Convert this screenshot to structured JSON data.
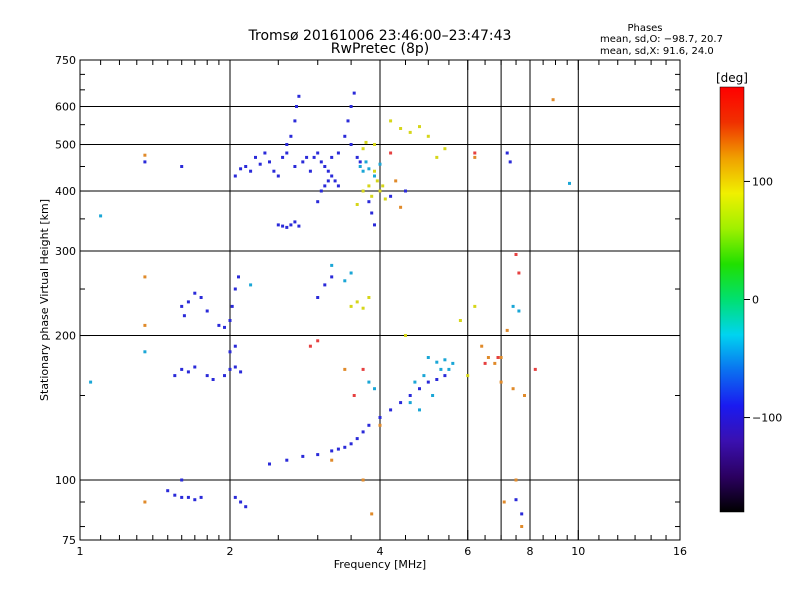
{
  "chart_data": {
    "type": "scatter",
    "title": "Tromsø 20161006 23:46:00–23:47:43",
    "subtitle": "RwPretec (8p)",
    "xlabel": "Frequency [MHz]",
    "ylabel": "Stationary phase Virtual Height [km]",
    "x_scale": "log",
    "y_scale": "log",
    "xlim": [
      1,
      16
    ],
    "ylim": [
      75,
      750
    ],
    "x_ticks": [
      1,
      2,
      4,
      6,
      8,
      10,
      16
    ],
    "x_tick_labels": [
      "1",
      "2",
      "4",
      "6",
      "8",
      "10",
      "16"
    ],
    "x_minor_ticks": [
      1.1,
      1.2,
      1.3,
      1.4,
      1.5,
      1.6,
      1.7,
      1.8,
      1.9,
      2.5,
      3,
      3.5,
      4.5,
      5,
      5.5,
      6.5,
      7,
      7.5,
      8.5,
      9,
      9.5,
      11,
      12,
      13,
      14,
      15
    ],
    "y_ticks": [
      75,
      100,
      200,
      300,
      400,
      500,
      600,
      750
    ],
    "y_tick_labels": [
      "75",
      "100",
      "200",
      "300",
      "400",
      "500",
      "600",
      "750"
    ],
    "y_minor_ticks": [
      80,
      90,
      150,
      250,
      350,
      450,
      550,
      650,
      700
    ],
    "grid_x": [
      2,
      4,
      6,
      7,
      8,
      10
    ],
    "grid_y": [
      100,
      200,
      300,
      400,
      500,
      600
    ],
    "stats_header": "Phases",
    "stats_lines": [
      "mean, sd,O: −98.7, 20.7",
      "mean, sd,X:  91.6, 24.0"
    ],
    "colorbar": {
      "label": "[deg]",
      "range": [
        -180,
        180
      ],
      "ticks": [
        100,
        0,
        -100
      ],
      "tick_labels": [
        "100",
        "0",
        "−100"
      ]
    },
    "series": [
      {
        "values": [
          [
            2.05,
            430
          ],
          [
            2.1,
            445
          ],
          [
            2.15,
            450
          ],
          [
            2.2,
            440
          ],
          [
            2.25,
            470
          ],
          [
            2.3,
            455
          ],
          [
            2.35,
            480
          ],
          [
            2.4,
            460
          ],
          [
            2.45,
            440
          ],
          [
            2.5,
            430
          ],
          [
            2.55,
            470
          ],
          [
            2.6,
            500
          ],
          [
            2.65,
            520
          ],
          [
            2.7,
            560
          ],
          [
            2.72,
            600
          ],
          [
            2.75,
            630
          ],
          [
            2.6,
            480
          ],
          [
            2.7,
            450
          ],
          [
            2.8,
            460
          ],
          [
            2.85,
            470
          ],
          [
            2.9,
            440
          ],
          [
            2.95,
            470
          ],
          [
            3.0,
            480
          ],
          [
            3.05,
            460
          ],
          [
            3.1,
            450
          ],
          [
            3.15,
            440
          ],
          [
            3.2,
            470
          ],
          [
            3.3,
            480
          ],
          [
            3.4,
            520
          ],
          [
            3.45,
            560
          ],
          [
            3.5,
            600
          ],
          [
            3.55,
            640
          ],
          [
            3.5,
            500
          ],
          [
            3.6,
            470
          ],
          [
            3.65,
            460
          ],
          [
            2.5,
            340
          ],
          [
            2.55,
            338
          ],
          [
            2.6,
            336
          ],
          [
            2.65,
            340
          ],
          [
            2.7,
            345
          ],
          [
            2.75,
            338
          ],
          [
            3.0,
            380
          ],
          [
            3.05,
            400
          ],
          [
            3.1,
            410
          ],
          [
            3.15,
            420
          ],
          [
            3.2,
            430
          ],
          [
            3.25,
            420
          ],
          [
            3.3,
            410
          ],
          [
            3.8,
            380
          ],
          [
            3.85,
            360
          ],
          [
            3.9,
            340
          ],
          [
            1.6,
            230
          ],
          [
            1.62,
            220
          ],
          [
            1.65,
            235
          ],
          [
            1.7,
            245
          ],
          [
            1.75,
            240
          ],
          [
            1.8,
            225
          ],
          [
            1.9,
            210
          ],
          [
            1.95,
            208
          ],
          [
            2.0,
            215
          ],
          [
            2.02,
            230
          ],
          [
            2.05,
            250
          ],
          [
            2.08,
            265
          ],
          [
            3.0,
            240
          ],
          [
            3.1,
            255
          ],
          [
            3.2,
            265
          ],
          [
            1.55,
            165
          ],
          [
            1.6,
            170
          ],
          [
            1.65,
            168
          ],
          [
            1.7,
            172
          ],
          [
            1.8,
            165
          ],
          [
            1.85,
            162
          ],
          [
            1.95,
            165
          ],
          [
            2.0,
            170
          ],
          [
            2.05,
            172
          ],
          [
            2.1,
            168
          ],
          [
            2.0,
            185
          ],
          [
            2.05,
            190
          ],
          [
            2.4,
            108
          ],
          [
            2.6,
            110
          ],
          [
            2.8,
            112
          ],
          [
            3.0,
            113
          ],
          [
            3.2,
            115
          ],
          [
            3.3,
            116
          ],
          [
            3.4,
            117
          ],
          [
            3.5,
            119
          ],
          [
            3.6,
            122
          ],
          [
            3.7,
            126
          ],
          [
            3.8,
            130
          ],
          [
            4.0,
            135
          ],
          [
            4.2,
            140
          ],
          [
            4.4,
            145
          ],
          [
            4.6,
            150
          ],
          [
            4.8,
            155
          ],
          [
            5.0,
            160
          ],
          [
            5.2,
            162
          ],
          [
            5.4,
            165
          ],
          [
            1.5,
            95
          ],
          [
            1.55,
            93
          ],
          [
            1.6,
            92
          ],
          [
            1.65,
            92
          ],
          [
            1.7,
            91
          ],
          [
            1.75,
            92
          ],
          [
            1.6,
            100
          ],
          [
            2.05,
            92
          ],
          [
            2.1,
            90
          ],
          [
            2.15,
            88
          ],
          [
            1.35,
            460
          ],
          [
            1.6,
            450
          ],
          [
            4.2,
            390
          ],
          [
            4.5,
            400
          ],
          [
            7.2,
            480
          ],
          [
            7.3,
            460
          ],
          [
            7.5,
            91
          ],
          [
            7.7,
            85
          ]
        ]
      },
      {
        "values": [
          [
            3.65,
            450
          ],
          [
            3.7,
            440
          ],
          [
            3.75,
            460
          ],
          [
            3.8,
            445
          ],
          [
            3.9,
            430
          ],
          [
            4.0,
            455
          ],
          [
            5.0,
            180
          ],
          [
            5.2,
            176
          ],
          [
            5.4,
            178
          ],
          [
            5.6,
            175
          ],
          [
            5.3,
            170
          ],
          [
            4.7,
            160
          ],
          [
            4.9,
            165
          ],
          [
            5.1,
            150
          ],
          [
            5.5,
            170
          ],
          [
            1.1,
            355
          ],
          [
            3.2,
            280
          ],
          [
            3.4,
            260
          ],
          [
            3.5,
            270
          ],
          [
            4.8,
            140
          ],
          [
            4.6,
            145
          ],
          [
            7.6,
            225
          ],
          [
            9.6,
            415
          ],
          [
            1.05,
            160
          ],
          [
            1.35,
            185
          ],
          [
            7.4,
            230
          ],
          [
            3.8,
            160
          ],
          [
            3.9,
            155
          ],
          [
            2.2,
            255
          ]
        ]
      },
      {
        "values": [
          [
            3.9,
            440
          ],
          [
            3.95,
            420
          ],
          [
            4.0,
            400
          ],
          [
            4.05,
            410
          ],
          [
            4.1,
            385
          ],
          [
            3.7,
            400
          ],
          [
            3.8,
            410
          ],
          [
            3.85,
            390
          ],
          [
            3.6,
            375
          ],
          [
            3.5,
            230
          ],
          [
            3.6,
            235
          ],
          [
            3.7,
            228
          ],
          [
            3.8,
            240
          ],
          [
            3.9,
            500
          ],
          [
            4.2,
            560
          ],
          [
            4.4,
            540
          ],
          [
            4.6,
            530
          ],
          [
            4.8,
            545
          ],
          [
            5.0,
            520
          ],
          [
            5.2,
            470
          ],
          [
            5.4,
            490
          ],
          [
            6.2,
            230
          ],
          [
            5.8,
            215
          ],
          [
            3.7,
            490
          ],
          [
            3.75,
            505
          ],
          [
            4.5,
            200
          ],
          [
            6.0,
            165
          ]
        ]
      },
      {
        "values": [
          [
            1.35,
            475
          ],
          [
            1.35,
            265
          ],
          [
            1.35,
            210
          ],
          [
            1.35,
            90
          ],
          [
            6.2,
            470
          ],
          [
            6.4,
            190
          ],
          [
            6.6,
            180
          ],
          [
            7.0,
            180
          ],
          [
            7.2,
            205
          ],
          [
            6.8,
            175
          ],
          [
            7.4,
            155
          ],
          [
            7.8,
            150
          ],
          [
            7.1,
            90
          ],
          [
            7.5,
            100
          ],
          [
            7.7,
            80
          ],
          [
            8.9,
            620
          ],
          [
            4.4,
            370
          ],
          [
            4.3,
            420
          ],
          [
            4.0,
            130
          ],
          [
            3.7,
            100
          ],
          [
            3.85,
            85
          ],
          [
            7.0,
            160
          ],
          [
            3.2,
            110
          ],
          [
            3.4,
            170
          ]
        ]
      },
      {
        "values": [
          [
            3.55,
            150
          ],
          [
            3.7,
            170
          ],
          [
            3.0,
            195
          ],
          [
            2.9,
            190
          ],
          [
            7.5,
            295
          ],
          [
            7.6,
            270
          ],
          [
            8.2,
            170
          ],
          [
            4.2,
            480
          ],
          [
            6.2,
            480
          ],
          [
            6.5,
            175
          ],
          [
            6.9,
            180
          ]
        ]
      }
    ]
  },
  "series_colors": [
    "#2a2ad9",
    "#1aa6d6",
    "#d6d619",
    "#e08a2a",
    "#e64040"
  ],
  "colorbar_stops": [
    "#000000",
    "#2b0060",
    "#3a10b0",
    "#1a1af0",
    "#0a70f0",
    "#00d4f0",
    "#00e070",
    "#20e000",
    "#a0f000",
    "#f0f000",
    "#f0a000",
    "#f03000",
    "#ff0000"
  ]
}
